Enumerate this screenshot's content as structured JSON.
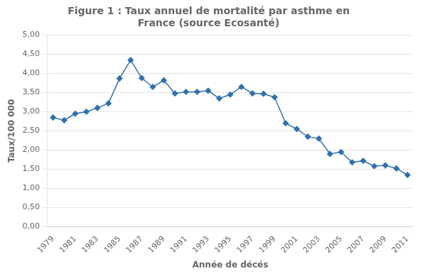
{
  "chart_data": {
    "type": "line",
    "title": "Figure 1 : Taux annuel de mortalité par asthme en\nFrance (source Ecosanté)",
    "xlabel": "Année de décés",
    "ylabel": "Taux/100 000",
    "x": [
      1979,
      1980,
      1981,
      1982,
      1983,
      1984,
      1985,
      1986,
      1987,
      1988,
      1989,
      1990,
      1991,
      1992,
      1993,
      1994,
      1995,
      1996,
      1997,
      1998,
      1999,
      2000,
      2001,
      2002,
      2003,
      2004,
      2005,
      2006,
      2007,
      2008,
      2009,
      2010,
      2011
    ],
    "values": [
      2.85,
      2.78,
      2.95,
      3.0,
      3.1,
      3.22,
      3.87,
      4.35,
      3.88,
      3.65,
      3.82,
      3.48,
      3.52,
      3.52,
      3.55,
      3.35,
      3.45,
      3.65,
      3.48,
      3.47,
      3.38,
      2.7,
      2.55,
      2.35,
      2.3,
      1.9,
      1.95,
      1.68,
      1.72,
      1.58,
      1.6,
      1.52,
      1.35
    ],
    "color": "#3070B0",
    "marker": "diamond",
    "xlim": [
      1978.5,
      2011.5
    ],
    "xticks": [
      1979,
      1981,
      1983,
      1985,
      1987,
      1989,
      1991,
      1993,
      1995,
      1997,
      1999,
      2001,
      2003,
      2005,
      2007,
      2009,
      2011
    ],
    "ylim": [
      0.0,
      5.0
    ],
    "yticks": [
      {
        "value": 0.0,
        "label": "0,00"
      },
      {
        "value": 0.5,
        "label": "0,50"
      },
      {
        "value": 1.0,
        "label": "1,00"
      },
      {
        "value": 1.5,
        "label": "1,50"
      },
      {
        "value": 2.0,
        "label": "2,00"
      },
      {
        "value": 2.5,
        "label": "2,50"
      },
      {
        "value": 3.0,
        "label": "3,00"
      },
      {
        "value": 3.5,
        "label": "3,50"
      },
      {
        "value": 4.0,
        "label": "4,00"
      },
      {
        "value": 4.5,
        "label": "4,50"
      },
      {
        "value": 5.0,
        "label": "5,00"
      }
    ],
    "grid": "y"
  }
}
